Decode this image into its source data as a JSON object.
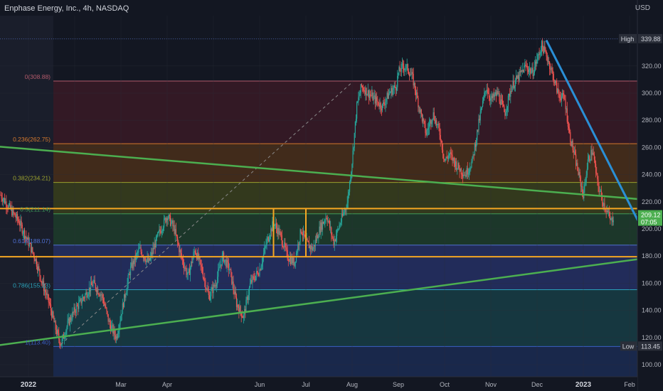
{
  "header": {
    "title": "Enphase Energy, Inc., 4h, NASDAQ",
    "currency": "USD"
  },
  "chart_data": {
    "type": "candlestick",
    "symbol": "Enphase Energy, Inc.",
    "interval": "4h",
    "exchange": "NASDAQ",
    "currency": "USD",
    "ylim": [
      90,
      350
    ],
    "y_ticks": [
      "100.00",
      "120.00",
      "140.00",
      "160.00",
      "180.00",
      "200.00",
      "220.00",
      "240.00",
      "260.00",
      "280.00",
      "300.00",
      "320.00"
    ],
    "x_ticks": [
      {
        "label": "2022",
        "t": 0.0
      },
      {
        "label": "Mar",
        "t": 2.0
      },
      {
        "label": "Apr",
        "t": 3.0
      },
      {
        "label": "Jun",
        "t": 5.0
      },
      {
        "label": "Jul",
        "t": 6.0
      },
      {
        "label": "Aug",
        "t": 7.0
      },
      {
        "label": "Sep",
        "t": 8.0
      },
      {
        "label": "Oct",
        "t": 9.0
      },
      {
        "label": "Nov",
        "t": 10.0
      },
      {
        "label": "Dec",
        "t": 11.0
      },
      {
        "label": "2023",
        "t": 12.0
      },
      {
        "label": "Feb",
        "t": 13.0
      }
    ],
    "price_path": [
      [
        -0.6,
        225
      ],
      [
        -0.4,
        215
      ],
      [
        -0.2,
        205
      ],
      [
        0.0,
        190
      ],
      [
        0.15,
        178
      ],
      [
        0.3,
        160
      ],
      [
        0.45,
        145
      ],
      [
        0.6,
        125
      ],
      [
        0.7,
        115
      ],
      [
        0.85,
        130
      ],
      [
        1.0,
        140
      ],
      [
        1.2,
        150
      ],
      [
        1.4,
        160
      ],
      [
        1.6,
        150
      ],
      [
        1.75,
        130
      ],
      [
        1.9,
        120
      ],
      [
        2.05,
        145
      ],
      [
        2.2,
        170
      ],
      [
        2.4,
        185
      ],
      [
        2.6,
        175
      ],
      [
        2.8,
        195
      ],
      [
        3.0,
        210
      ],
      [
        3.15,
        200
      ],
      [
        3.3,
        180
      ],
      [
        3.45,
        165
      ],
      [
        3.6,
        185
      ],
      [
        3.75,
        170
      ],
      [
        3.9,
        150
      ],
      [
        4.05,
        160
      ],
      [
        4.2,
        180
      ],
      [
        4.35,
        170
      ],
      [
        4.5,
        145
      ],
      [
        4.65,
        135
      ],
      [
        4.8,
        160
      ],
      [
        5.0,
        170
      ],
      [
        5.15,
        190
      ],
      [
        5.3,
        205
      ],
      [
        5.45,
        195
      ],
      [
        5.6,
        180
      ],
      [
        5.75,
        175
      ],
      [
        5.9,
        200
      ],
      [
        6.0,
        190
      ],
      [
        6.15,
        185
      ],
      [
        6.3,
        200
      ],
      [
        6.45,
        210
      ],
      [
        6.6,
        190
      ],
      [
        6.75,
        205
      ],
      [
        6.9,
        220
      ],
      [
        7.0,
        250
      ],
      [
        7.1,
        290
      ],
      [
        7.2,
        305
      ],
      [
        7.35,
        300
      ],
      [
        7.5,
        295
      ],
      [
        7.65,
        290
      ],
      [
        7.8,
        300
      ],
      [
        7.95,
        305
      ],
      [
        8.0,
        315
      ],
      [
        8.1,
        320
      ],
      [
        8.2,
        318
      ],
      [
        8.3,
        312
      ],
      [
        8.45,
        290
      ],
      [
        8.6,
        270
      ],
      [
        8.75,
        285
      ],
      [
        8.9,
        270
      ],
      [
        9.0,
        250
      ],
      [
        9.1,
        255
      ],
      [
        9.3,
        245
      ],
      [
        9.45,
        240
      ],
      [
        9.6,
        250
      ],
      [
        9.75,
        280
      ],
      [
        9.9,
        305
      ],
      [
        10.0,
        295
      ],
      [
        10.15,
        300
      ],
      [
        10.3,
        285
      ],
      [
        10.45,
        305
      ],
      [
        10.6,
        312
      ],
      [
        10.75,
        320
      ],
      [
        10.9,
        315
      ],
      [
        11.0,
        325
      ],
      [
        11.1,
        335
      ],
      [
        11.2,
        328
      ],
      [
        11.3,
        318
      ],
      [
        11.45,
        300
      ],
      [
        11.6,
        295
      ],
      [
        11.7,
        270
      ],
      [
        11.8,
        255
      ],
      [
        11.9,
        240
      ],
      [
        12.0,
        225
      ],
      [
        12.1,
        250
      ],
      [
        12.2,
        258
      ],
      [
        12.3,
        235
      ],
      [
        12.4,
        222
      ],
      [
        12.5,
        214
      ],
      [
        12.6,
        205
      ],
      [
        12.65,
        209.12
      ]
    ],
    "last_price": "209.12",
    "countdown": "07:05",
    "high": {
      "label": "High",
      "value": "339.88"
    },
    "low": {
      "label": "Low",
      "value": "113.45"
    },
    "fib_levels": [
      {
        "label": "0(308.88)",
        "value": 308.88,
        "fill": "#3a1a26",
        "line": "#b25a6b"
      },
      {
        "label": "0.236(262.75)",
        "value": 262.75,
        "fill": "#4a2f1a",
        "line": "#d4782e"
      },
      {
        "label": "0.382(234.21)",
        "value": 234.21,
        "fill": "#3a3f1c",
        "line": "#9aa02e"
      },
      {
        "label": "0.5(211.14)",
        "value": 211.14,
        "fill": "#1f3d2b",
        "line": "#3f9a58"
      },
      {
        "label": "0.618(188.07)",
        "value": 188.07,
        "fill": "#263064",
        "line": "#4f6fd1"
      },
      {
        "label": "0.786(155.23)",
        "value": 155.23,
        "fill": "#173d45",
        "line": "#2aa1b8"
      },
      {
        "label": "1(113.40)",
        "value": 113.4,
        "fill": "#1b2b52",
        "line": "#3a5fc4"
      }
    ],
    "fib_bottom_fill": "#1b2b52",
    "horizontal_levels": [
      {
        "value": 215.0,
        "color": "#f5a623"
      },
      {
        "value": 179.5,
        "color": "#f5a623"
      }
    ],
    "vertical_markers": [
      {
        "t": 5.3,
        "from": 179.5,
        "to": 215,
        "color": "#f5a623"
      },
      {
        "t": 6.0,
        "from": 179.5,
        "to": 215,
        "color": "#f5a623"
      }
    ],
    "trendlines": [
      {
        "from": [
          -1.15,
          262
        ],
        "to": [
          13.9,
          220
        ],
        "color": "#4caf50",
        "name": "descending-trendline"
      },
      {
        "from": [
          -1.15,
          112
        ],
        "to": [
          13.9,
          181
        ],
        "color": "#4caf50",
        "name": "ascending-trendline"
      },
      {
        "from": [
          11.2,
          339
        ],
        "to": [
          13.6,
          178
        ],
        "color": "#2a8fd6",
        "name": "projection-line"
      }
    ],
    "dashed_line": {
      "from": [
        0.7,
        115
      ],
      "to": [
        7.0,
        308
      ],
      "color": "#8a8a8a"
    },
    "colors": {
      "up": "#26a69a",
      "down": "#ef5350",
      "background": "#131722",
      "axis_text": "#b2b5be",
      "price_tag": "#4caf50",
      "high_tag": "#2a2e39"
    }
  }
}
